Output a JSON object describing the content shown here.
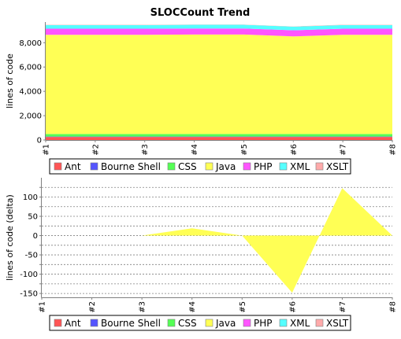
{
  "chart_data": [
    {
      "type": "area",
      "stacked": true,
      "title": "SLOCCount Trend",
      "xlabel": "",
      "ylabel": "lines of code",
      "categories": [
        "#1",
        "#2",
        "#3",
        "#4",
        "#5",
        "#6",
        "#7",
        "#8"
      ],
      "ylim": [
        0,
        9700
      ],
      "yticks": [
        0,
        2000,
        4000,
        6000,
        8000
      ],
      "ytick_labels": [
        "0",
        "2,000",
        "4,000",
        "6,000",
        "8,000"
      ],
      "grid": false,
      "series": [
        {
          "name": "Ant",
          "color": "#ff5555",
          "values": [
            250,
            250,
            250,
            250,
            250,
            250,
            250,
            250
          ]
        },
        {
          "name": "Bourne Shell",
          "color": "#5555ff",
          "values": [
            30,
            30,
            30,
            30,
            30,
            30,
            30,
            30
          ]
        },
        {
          "name": "CSS",
          "color": "#55ff55",
          "values": [
            210,
            210,
            210,
            210,
            210,
            210,
            210,
            210
          ]
        },
        {
          "name": "Java",
          "color": "#ffff55",
          "values": [
            8160,
            8160,
            8160,
            8180,
            8180,
            8030,
            8160,
            8160
          ]
        },
        {
          "name": "PHP",
          "color": "#ff55ff",
          "values": [
            500,
            500,
            500,
            500,
            500,
            500,
            500,
            500
          ]
        },
        {
          "name": "XML",
          "color": "#55ffff",
          "values": [
            300,
            300,
            300,
            300,
            300,
            300,
            300,
            300
          ]
        },
        {
          "name": "XSLT",
          "color": "#ffaaaa",
          "values": [
            20,
            20,
            20,
            20,
            20,
            20,
            20,
            20
          ]
        }
      ]
    },
    {
      "type": "area",
      "stacked": true,
      "title": "",
      "xlabel": "",
      "ylabel": "lines of code (delta)",
      "categories": [
        "#1",
        "#2",
        "#3",
        "#4",
        "#5",
        "#6",
        "#7",
        "#8"
      ],
      "ylim": [
        -160,
        150
      ],
      "yticks": [
        -150,
        -125,
        -100,
        -75,
        -50,
        -25,
        0,
        25,
        50,
        75,
        100,
        125
      ],
      "ytick_labels": [
        "-150",
        "",
        "-100",
        "",
        "-50",
        "",
        "0",
        "",
        "50",
        "",
        "100",
        ""
      ],
      "grid": true,
      "series": [
        {
          "name": "Ant",
          "color": "#ff5555",
          "values": [
            0,
            0,
            0,
            0,
            0,
            0,
            0,
            0
          ]
        },
        {
          "name": "Bourne Shell",
          "color": "#5555ff",
          "values": [
            0,
            0,
            0,
            0,
            0,
            0,
            0,
            0
          ]
        },
        {
          "name": "CSS",
          "color": "#55ff55",
          "values": [
            0,
            0,
            0,
            0,
            0,
            0,
            0,
            0
          ]
        },
        {
          "name": "Java",
          "color": "#ffff55",
          "values": [
            0,
            0,
            0,
            19,
            0,
            -148,
            123,
            0
          ]
        },
        {
          "name": "PHP",
          "color": "#ff55ff",
          "values": [
            0,
            0,
            0,
            0,
            0,
            0,
            0,
            0
          ]
        },
        {
          "name": "XML",
          "color": "#55ffff",
          "values": [
            0,
            0,
            0,
            0,
            0,
            0,
            0,
            0
          ]
        },
        {
          "name": "XSLT",
          "color": "#ffaaaa",
          "values": [
            0,
            0,
            0,
            0,
            0,
            0,
            0,
            0
          ]
        }
      ]
    }
  ]
}
